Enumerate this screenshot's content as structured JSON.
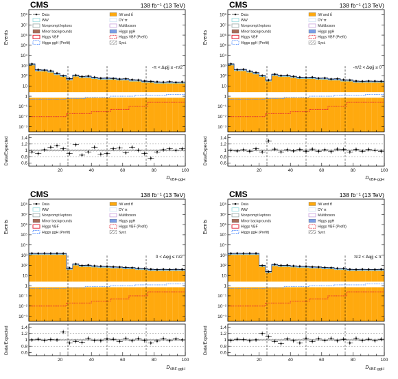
{
  "experiment": "CMS",
  "lumi": "138 fb⁻¹ (13 TeV)",
  "legend": [
    {
      "label": "Data",
      "color": "#000000",
      "kind": "marker"
    },
    {
      "label": "tW and tt̄",
      "color": "#ffa90e",
      "kind": "fill"
    },
    {
      "label": "WW",
      "color": "#92dadd",
      "kind": "line"
    },
    {
      "label": "DY ττ",
      "color": "#cfe2f3",
      "kind": "line"
    },
    {
      "label": "Nonprompt leptons",
      "color": "#94a4a2",
      "kind": "line"
    },
    {
      "label": "Multiboson",
      "color": "#c9a0dc",
      "kind": "line"
    },
    {
      "label": "Minor backgrounds",
      "color": "#a96b59",
      "kind": "fill"
    },
    {
      "label": "Higgs ggH",
      "color": "#7a9ee6",
      "kind": "fill"
    },
    {
      "label": "Higgs VBF",
      "color": "#e42536",
      "kind": "box"
    },
    {
      "label": "Higgs VBF (Prefit)",
      "color": "#e42536",
      "kind": "dash"
    },
    {
      "label": "Higgs ggH (Prefit)",
      "color": "#5790fc",
      "kind": "dash"
    },
    {
      "label": "Syst.",
      "color": "#888888",
      "kind": "hatch"
    }
  ],
  "y_axis_label": "Events",
  "ratio_axis_label": "Data/Expected",
  "chart_data": [
    {
      "type": "bar",
      "region": "-π < Δφjj ≤ -π/2",
      "xlabel": "D VBF-ggH",
      "x_ticks": [
        "20",
        "40",
        "60",
        "80",
        "100"
      ],
      "y_ticks": [
        "10⁻³",
        "10⁻²",
        "10⁻¹",
        "1",
        "10",
        "10²",
        "10³",
        "10⁴",
        "10⁵",
        "10⁶",
        "10⁷",
        "10⁸"
      ],
      "ratio_ticks": [
        "0.6",
        "0.8",
        "1",
        "1.2",
        "1.4"
      ],
      "xlim": [
        0,
        100
      ],
      "ylim_log10": [
        -3.5,
        8.5
      ],
      "ratio_lim": [
        0.5,
        1.5
      ],
      "bins": [
        0,
        4,
        8,
        12,
        16,
        20,
        24,
        28,
        32,
        36,
        40,
        44,
        48,
        52,
        56,
        60,
        64,
        68,
        72,
        76,
        80,
        84,
        88,
        92,
        96,
        100
      ],
      "region_edges": [
        25,
        50,
        75
      ],
      "mc_total": [
        1500,
        380,
        380,
        300,
        170,
        110,
        50,
        120,
        90,
        90,
        70,
        60,
        60,
        60,
        50,
        50,
        40,
        40,
        30,
        30,
        25,
        25,
        25,
        25,
        25
      ],
      "orange_floor": 0.0003,
      "vbf_prefit": [
        0.01,
        0.01,
        0.01,
        0.01,
        0.01,
        0.01,
        0.02,
        0.02,
        0.02,
        0.02,
        0.03,
        0.03,
        0.03,
        0.05,
        0.05,
        0.05,
        0.1,
        0.1,
        0.1,
        0.25,
        0.25,
        0.25,
        0.25,
        0.25,
        0.25
      ],
      "ggh_prefit": [
        0.5,
        0.5,
        0.5,
        0.5,
        0.5,
        0.5,
        0.6,
        0.6,
        0.6,
        0.8,
        0.8,
        0.8,
        0.8,
        1,
        1,
        1,
        1,
        1.2,
        1.2,
        1.2,
        1.2,
        1.2,
        1.5,
        1.5,
        1.5
      ],
      "data": [
        1450,
        400,
        360,
        310,
        180,
        100,
        55,
        115,
        85,
        95,
        72,
        58,
        62,
        55,
        48,
        52,
        42,
        38,
        31,
        28,
        26,
        24,
        27,
        23,
        25
      ],
      "ratio": [
        0.95,
        0.9,
        1.02,
        1.1,
        1.15,
        1.05,
        0.9,
        1.18,
        0.85,
        0.95,
        1.1,
        0.88,
        0.9,
        1.05,
        1.08,
        0.92,
        1.1,
        1.0,
        0.9,
        0.75,
        0.95,
        1.02,
        1.05,
        1.0,
        1.05
      ]
    },
    {
      "type": "bar",
      "region": "-π/2 < Δφjj ≤ 0",
      "xlabel": "D VBF-ggH",
      "x_ticks": [
        "20",
        "40",
        "60",
        "80",
        "100"
      ],
      "y_ticks": [
        "10⁻³",
        "10⁻²",
        "10⁻¹",
        "1",
        "10",
        "10²",
        "10³",
        "10⁴",
        "10⁵",
        "10⁶",
        "10⁷",
        "10⁸"
      ],
      "ratio_ticks": [
        "0.6",
        "0.8",
        "1",
        "1.2",
        "1.4"
      ],
      "xlim": [
        0,
        100
      ],
      "ylim_log10": [
        -3.5,
        8.5
      ],
      "ratio_lim": [
        0.5,
        1.5
      ],
      "bins": [
        0,
        4,
        8,
        12,
        16,
        20,
        24,
        28,
        32,
        36,
        40,
        44,
        48,
        52,
        56,
        60,
        64,
        68,
        72,
        76,
        80,
        84,
        88,
        92,
        96,
        100
      ],
      "region_edges": [
        25,
        50,
        75
      ],
      "mc_total": [
        1500,
        420,
        420,
        300,
        200,
        110,
        40,
        140,
        110,
        110,
        90,
        70,
        70,
        70,
        60,
        60,
        50,
        50,
        40,
        40,
        30,
        30,
        30,
        30,
        30
      ],
      "orange_floor": 0.0003,
      "vbf_prefit": [
        0.01,
        0.01,
        0.01,
        0.01,
        0.01,
        0.01,
        0.02,
        0.02,
        0.02,
        0.02,
        0.03,
        0.03,
        0.03,
        0.05,
        0.05,
        0.05,
        0.1,
        0.1,
        0.1,
        0.25,
        0.25,
        0.25,
        0.25,
        0.25,
        0.25
      ],
      "ggh_prefit": [
        0.5,
        0.5,
        0.5,
        0.5,
        0.5,
        0.5,
        0.6,
        0.6,
        0.6,
        0.8,
        0.8,
        0.8,
        0.8,
        1,
        1,
        1,
        1,
        1.2,
        1.2,
        1.2,
        1.2,
        1.2,
        1.5,
        1.5,
        1.5
      ],
      "data": [
        1480,
        410,
        430,
        290,
        210,
        105,
        38,
        145,
        105,
        112,
        88,
        72,
        68,
        73,
        58,
        61,
        48,
        52,
        41,
        38,
        31,
        29,
        31,
        30,
        29
      ],
      "ratio": [
        1.0,
        0.98,
        1.02,
        0.97,
        1.05,
        0.95,
        1.3,
        1.04,
        0.95,
        1.02,
        0.98,
        1.03,
        0.97,
        1.04,
        0.97,
        1.02,
        0.96,
        1.04,
        1.03,
        0.95,
        1.03,
        0.97,
        1.03,
        1.0,
        0.97
      ]
    },
    {
      "type": "bar",
      "region": "0 < Δφjj ≤ π/2",
      "xlabel": "D VBF-ggH",
      "x_ticks": [
        "20",
        "40",
        "60",
        "80",
        "100"
      ],
      "y_ticks": [
        "10⁻³",
        "10⁻²",
        "10⁻¹",
        "1",
        "10",
        "10²",
        "10³",
        "10⁴",
        "10⁵",
        "10⁶",
        "10⁷",
        "10⁸"
      ],
      "ratio_ticks": [
        "0.6",
        "0.8",
        "1",
        "1.2",
        "1.4"
      ],
      "xlim": [
        0,
        100
      ],
      "ylim_log10": [
        -3.5,
        8.5
      ],
      "ratio_lim": [
        0.5,
        1.5
      ],
      "bins": [
        0,
        4,
        8,
        12,
        16,
        20,
        24,
        28,
        32,
        36,
        40,
        44,
        48,
        52,
        56,
        60,
        64,
        68,
        72,
        76,
        80,
        84,
        88,
        92,
        96,
        100
      ],
      "region_edges": [
        25,
        50,
        75
      ],
      "mc_total": [
        1500,
        1500,
        1500,
        1500,
        1500,
        1500,
        50,
        140,
        100,
        100,
        90,
        80,
        80,
        70,
        70,
        60,
        60,
        50,
        50,
        40,
        40,
        40,
        40,
        40,
        40
      ],
      "orange_floor": 0.0003,
      "vbf_prefit": [
        0.01,
        0.01,
        0.01,
        0.01,
        0.01,
        0.01,
        0.02,
        0.02,
        0.02,
        0.02,
        0.03,
        0.03,
        0.03,
        0.05,
        0.05,
        0.05,
        0.1,
        0.1,
        0.1,
        0.25,
        0.25,
        0.25,
        0.25,
        0.25,
        0.25
      ],
      "ggh_prefit": [
        0.5,
        0.5,
        0.5,
        0.5,
        0.5,
        0.5,
        0.6,
        0.6,
        0.6,
        0.8,
        0.8,
        0.8,
        0.8,
        1,
        1,
        1,
        1,
        1.2,
        1.2,
        1.2,
        1.2,
        1.2,
        1.5,
        1.5,
        1.5
      ],
      "data": [
        1520,
        1480,
        1510,
        1490,
        1500,
        1460,
        55,
        135,
        95,
        105,
        88,
        82,
        78,
        72,
        68,
        63,
        58,
        52,
        48,
        42,
        38,
        41,
        39,
        41,
        40
      ],
      "ratio": [
        1.0,
        1.02,
        0.98,
        1.01,
        1.0,
        1.25,
        0.9,
        0.95,
        0.92,
        1.05,
        0.98,
        0.97,
        1.03,
        1.02,
        0.95,
        1.05,
        0.97,
        1.04,
        0.98,
        0.9,
        0.96,
        1.04,
        0.97,
        1.03,
        1.0
      ]
    },
    {
      "type": "bar",
      "region": "π/2 < Δφjj ≤ π",
      "xlabel": "D VBF-ggH",
      "x_ticks": [
        "20",
        "40",
        "60",
        "80",
        "100"
      ],
      "y_ticks": [
        "10⁻³",
        "10⁻²",
        "10⁻¹",
        "1",
        "10",
        "10²",
        "10³",
        "10⁴",
        "10⁵",
        "10⁶",
        "10⁷",
        "10⁸"
      ],
      "ratio_ticks": [
        "0.6",
        "0.8",
        "1",
        "1.2",
        "1.4"
      ],
      "xlim": [
        0,
        100
      ],
      "ylim_log10": [
        -3.5,
        8.5
      ],
      "ratio_lim": [
        0.5,
        1.5
      ],
      "bins": [
        0,
        4,
        8,
        12,
        16,
        20,
        24,
        28,
        32,
        36,
        40,
        44,
        48,
        52,
        56,
        60,
        64,
        68,
        72,
        76,
        80,
        84,
        88,
        92,
        96,
        100
      ],
      "region_edges": [
        25,
        50,
        75
      ],
      "mc_total": [
        1500,
        1500,
        1500,
        1500,
        1500,
        100,
        25,
        120,
        100,
        100,
        90,
        80,
        80,
        70,
        70,
        60,
        60,
        50,
        50,
        40,
        40,
        40,
        40,
        40,
        40
      ],
      "orange_floor": 0.0003,
      "vbf_prefit": [
        0.01,
        0.01,
        0.01,
        0.01,
        0.01,
        0.01,
        0.02,
        0.02,
        0.02,
        0.02,
        0.03,
        0.03,
        0.03,
        0.05,
        0.05,
        0.05,
        0.1,
        0.1,
        0.1,
        0.25,
        0.25,
        0.25,
        0.25,
        0.25,
        0.25
      ],
      "ggh_prefit": [
        0.5,
        0.5,
        0.5,
        0.5,
        0.5,
        0.5,
        0.6,
        0.6,
        0.6,
        0.8,
        0.8,
        0.8,
        0.8,
        1,
        1,
        1,
        1,
        1.2,
        1.2,
        1.2,
        1.2,
        1.2,
        1.5,
        1.5,
        1.5
      ],
      "data": [
        1490,
        1530,
        1480,
        1510,
        1500,
        95,
        24,
        125,
        98,
        103,
        87,
        81,
        79,
        71,
        68,
        62,
        58,
        51,
        50,
        41,
        39,
        41,
        40,
        39,
        41
      ],
      "ratio": [
        0.98,
        1.02,
        1.01,
        0.97,
        1.0,
        1.2,
        1.1,
        0.95,
        0.88,
        1.03,
        0.97,
        0.9,
        1.05,
        0.95,
        1.04,
        0.98,
        1.05,
        0.97,
        1.02,
        0.9,
        1.05,
        0.98,
        1.02,
        0.97,
        1.02
      ]
    }
  ]
}
